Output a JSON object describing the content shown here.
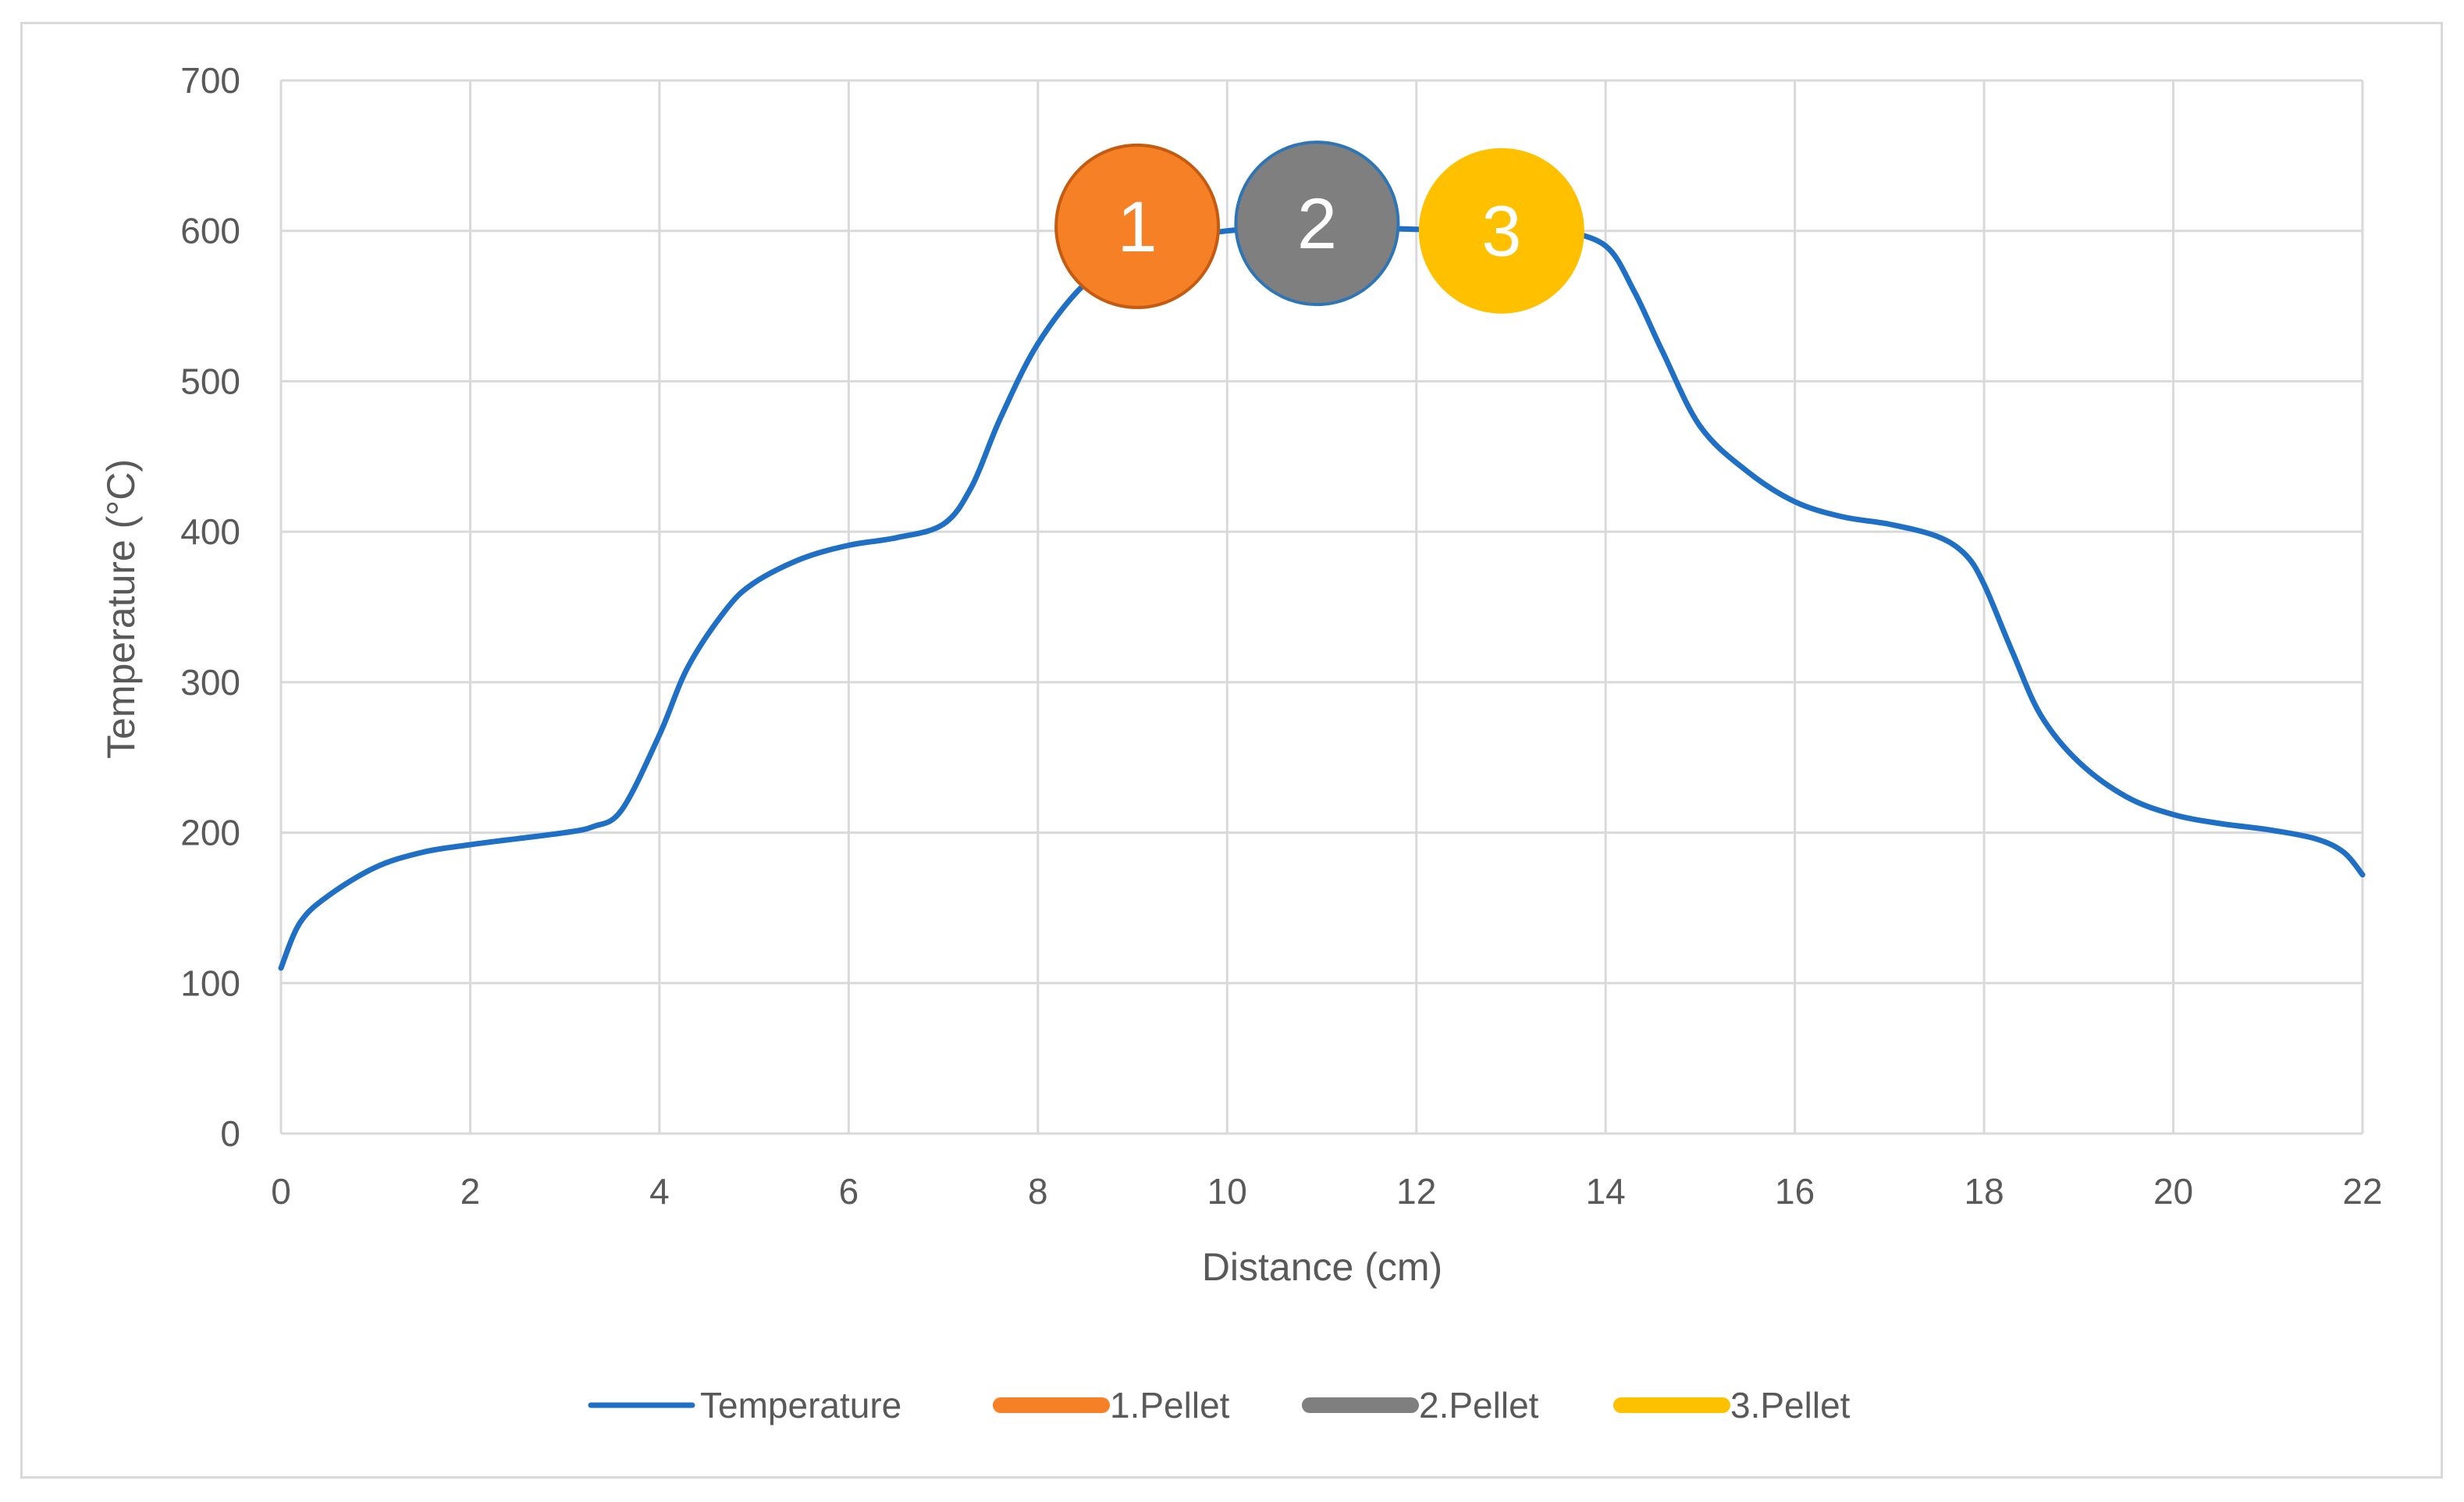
{
  "chart_data": {
    "type": "line",
    "xlabel": "Distance (cm)",
    "ylabel": "Temperature  (°C)",
    "xlim": [
      0,
      22
    ],
    "ylim": [
      0,
      700
    ],
    "x_ticks": [
      0,
      2,
      4,
      6,
      8,
      10,
      12,
      14,
      16,
      18,
      20,
      22
    ],
    "y_ticks": [
      0,
      100,
      200,
      300,
      400,
      500,
      600,
      700
    ],
    "grid": true,
    "legend_position": "bottom",
    "series": [
      {
        "name": "Temperature",
        "color": "#1f6fc5",
        "x": [
          0,
          0.2,
          0.5,
          1,
          1.5,
          2,
          2.5,
          3,
          3.3,
          3.6,
          4,
          4.3,
          4.7,
          5,
          5.5,
          6,
          6.5,
          7,
          7.3,
          7.6,
          8,
          8.5,
          9,
          9.5,
          10,
          10.5,
          11,
          11.5,
          12,
          12.5,
          13,
          13.5,
          14,
          14.3,
          14.6,
          15,
          15.5,
          16,
          16.5,
          17,
          17.5,
          17.8,
          18,
          18.3,
          18.6,
          19,
          19.5,
          20,
          20.5,
          21,
          21.5,
          21.8,
          22
        ],
        "y": [
          110,
          140,
          158,
          177,
          187,
          192,
          196,
          200,
          204,
          215,
          265,
          310,
          348,
          366,
          382,
          391,
          396,
          405,
          430,
          475,
          525,
          565,
          585,
          595,
          600,
          602,
          603,
          602,
          601,
          600,
          600,
          600,
          590,
          560,
          520,
          470,
          440,
          420,
          410,
          405,
          397,
          385,
          365,
          320,
          278,
          247,
          224,
          212,
          206,
          202,
          196,
          187,
          172
        ]
      },
      {
        "name": "1.Pellet",
        "color": "#f58025",
        "marker_label": "1",
        "x": 9.05,
        "y": 603
      },
      {
        "name": "2.Pellet",
        "color": "#7f7f7f",
        "marker_label": "2",
        "x": 10.95,
        "y": 605
      },
      {
        "name": "3.Pellet",
        "color": "#ffc000",
        "marker_label": "3",
        "x": 12.9,
        "y": 600
      }
    ]
  }
}
